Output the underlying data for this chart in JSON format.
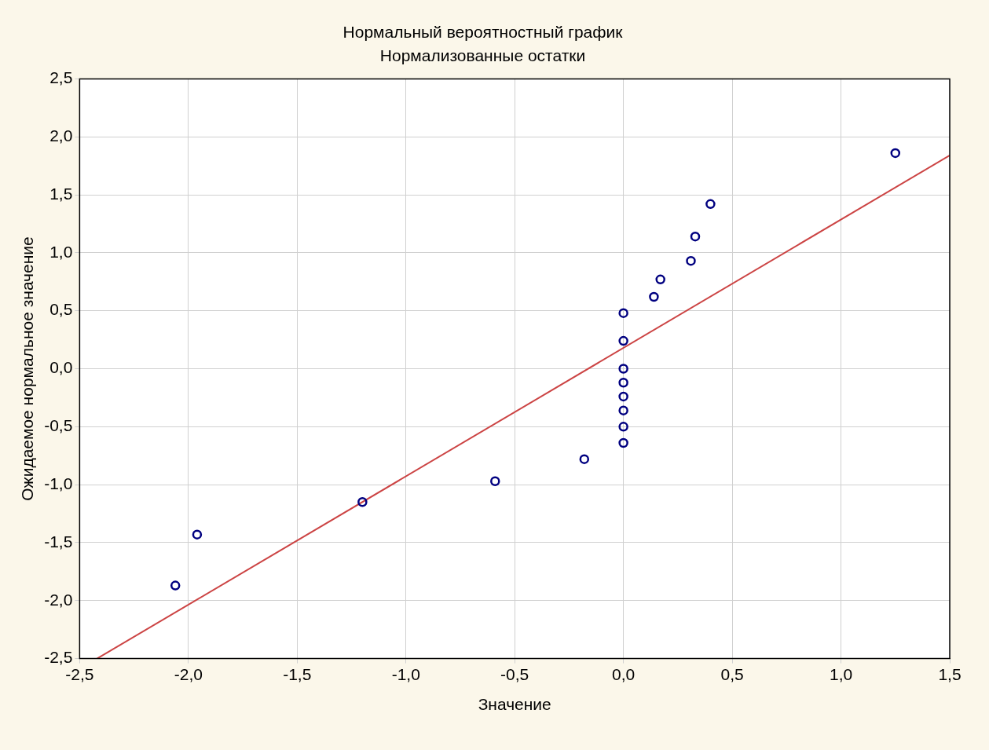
{
  "chart_data": {
    "type": "scatter",
    "title": "Нормальный вероятностный график",
    "subtitle": "Нормализованные остатки",
    "xlabel": "Значение",
    "ylabel": "Ожидаемое нормальное значение",
    "xlim": [
      -2.5,
      1.5
    ],
    "ylim": [
      -2.5,
      2.5
    ],
    "xticks": [
      {
        "value": -2.5,
        "label": "-2,5"
      },
      {
        "value": -2,
        "label": "-2,0"
      },
      {
        "value": -1.5,
        "label": "-1,5"
      },
      {
        "value": -1,
        "label": "-1,0"
      },
      {
        "value": -0.5,
        "label": "-0,5"
      },
      {
        "value": 0,
        "label": "0,0"
      },
      {
        "value": 0.5,
        "label": "0,5"
      },
      {
        "value": 1,
        "label": "1,0"
      },
      {
        "value": 1.5,
        "label": "1,5"
      }
    ],
    "yticks": [
      {
        "value": -2.5,
        "label": "-2,5"
      },
      {
        "value": -2,
        "label": "-2,0"
      },
      {
        "value": -1.5,
        "label": "-1,5"
      },
      {
        "value": -1,
        "label": "-1,0"
      },
      {
        "value": -0.5,
        "label": "-0,5"
      },
      {
        "value": 0,
        "label": "0,0"
      },
      {
        "value": 0.5,
        "label": "0,5"
      },
      {
        "value": 1,
        "label": "1,0"
      },
      {
        "value": 1.5,
        "label": "1,5"
      },
      {
        "value": 2,
        "label": "2,0"
      },
      {
        "value": 2.5,
        "label": "2,5"
      }
    ],
    "grid": true,
    "legend": false,
    "series": [
      {
        "type": "scatter",
        "marker": "circle",
        "color": "#000080",
        "x": [
          1.25,
          0.4,
          0.33,
          0.31,
          0.17,
          0.14,
          0,
          0,
          0,
          0,
          0,
          0,
          0,
          0,
          -0.18,
          -0.59,
          -1.2,
          -1.96,
          -2.06
        ],
        "values": [
          1.86,
          1.42,
          1.14,
          0.93,
          0.77,
          0.62,
          0.48,
          0.24,
          0,
          -0.12,
          -0.24,
          -0.36,
          -0.5,
          -0.64,
          -0.78,
          -0.97,
          -1.15,
          -1.43,
          -1.87
        ]
      },
      {
        "type": "line",
        "marker": "none",
        "color": "#cc4444",
        "line_style": "solid",
        "x": [
          -2.42,
          1.5
        ],
        "values": [
          -2.5,
          1.84
        ]
      }
    ]
  }
}
